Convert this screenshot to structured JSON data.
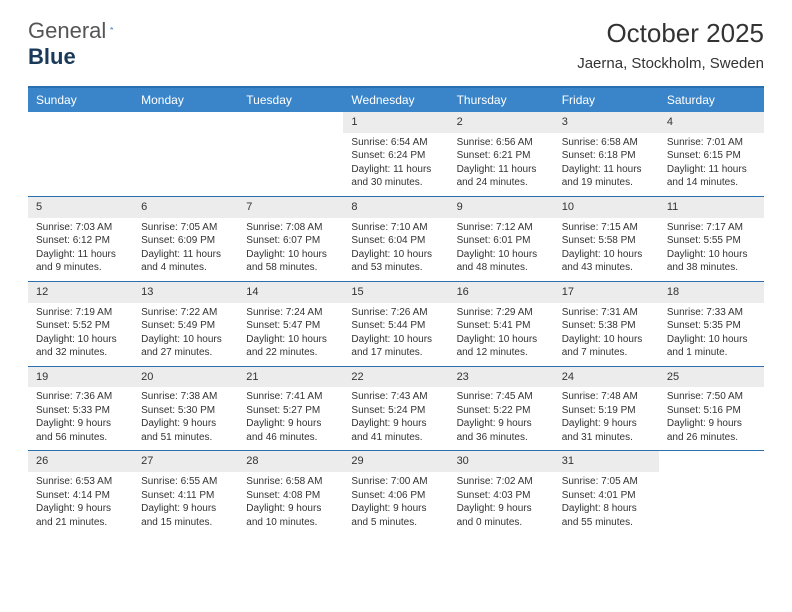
{
  "brand": {
    "word1": "General",
    "word2": "Blue",
    "icon_color": "#2a6fb0"
  },
  "header": {
    "month_title": "October 2025",
    "location": "Jaerna, Stockholm, Sweden"
  },
  "colors": {
    "header_bar": "#3a85c9",
    "rule": "#2a6fb0",
    "daynum_bg": "#ececec",
    "text": "#333333",
    "logo_gray": "#555555",
    "logo_dark": "#1a3a5a"
  },
  "columns": [
    "Sunday",
    "Monday",
    "Tuesday",
    "Wednesday",
    "Thursday",
    "Friday",
    "Saturday"
  ],
  "weeks": [
    [
      {
        "n": "",
        "sr": "",
        "ss": "",
        "dl": ""
      },
      {
        "n": "",
        "sr": "",
        "ss": "",
        "dl": ""
      },
      {
        "n": "",
        "sr": "",
        "ss": "",
        "dl": ""
      },
      {
        "n": "1",
        "sr": "Sunrise: 6:54 AM",
        "ss": "Sunset: 6:24 PM",
        "dl": "Daylight: 11 hours and 30 minutes."
      },
      {
        "n": "2",
        "sr": "Sunrise: 6:56 AM",
        "ss": "Sunset: 6:21 PM",
        "dl": "Daylight: 11 hours and 24 minutes."
      },
      {
        "n": "3",
        "sr": "Sunrise: 6:58 AM",
        "ss": "Sunset: 6:18 PM",
        "dl": "Daylight: 11 hours and 19 minutes."
      },
      {
        "n": "4",
        "sr": "Sunrise: 7:01 AM",
        "ss": "Sunset: 6:15 PM",
        "dl": "Daylight: 11 hours and 14 minutes."
      }
    ],
    [
      {
        "n": "5",
        "sr": "Sunrise: 7:03 AM",
        "ss": "Sunset: 6:12 PM",
        "dl": "Daylight: 11 hours and 9 minutes."
      },
      {
        "n": "6",
        "sr": "Sunrise: 7:05 AM",
        "ss": "Sunset: 6:09 PM",
        "dl": "Daylight: 11 hours and 4 minutes."
      },
      {
        "n": "7",
        "sr": "Sunrise: 7:08 AM",
        "ss": "Sunset: 6:07 PM",
        "dl": "Daylight: 10 hours and 58 minutes."
      },
      {
        "n": "8",
        "sr": "Sunrise: 7:10 AM",
        "ss": "Sunset: 6:04 PM",
        "dl": "Daylight: 10 hours and 53 minutes."
      },
      {
        "n": "9",
        "sr": "Sunrise: 7:12 AM",
        "ss": "Sunset: 6:01 PM",
        "dl": "Daylight: 10 hours and 48 minutes."
      },
      {
        "n": "10",
        "sr": "Sunrise: 7:15 AM",
        "ss": "Sunset: 5:58 PM",
        "dl": "Daylight: 10 hours and 43 minutes."
      },
      {
        "n": "11",
        "sr": "Sunrise: 7:17 AM",
        "ss": "Sunset: 5:55 PM",
        "dl": "Daylight: 10 hours and 38 minutes."
      }
    ],
    [
      {
        "n": "12",
        "sr": "Sunrise: 7:19 AM",
        "ss": "Sunset: 5:52 PM",
        "dl": "Daylight: 10 hours and 32 minutes."
      },
      {
        "n": "13",
        "sr": "Sunrise: 7:22 AM",
        "ss": "Sunset: 5:49 PM",
        "dl": "Daylight: 10 hours and 27 minutes."
      },
      {
        "n": "14",
        "sr": "Sunrise: 7:24 AM",
        "ss": "Sunset: 5:47 PM",
        "dl": "Daylight: 10 hours and 22 minutes."
      },
      {
        "n": "15",
        "sr": "Sunrise: 7:26 AM",
        "ss": "Sunset: 5:44 PM",
        "dl": "Daylight: 10 hours and 17 minutes."
      },
      {
        "n": "16",
        "sr": "Sunrise: 7:29 AM",
        "ss": "Sunset: 5:41 PM",
        "dl": "Daylight: 10 hours and 12 minutes."
      },
      {
        "n": "17",
        "sr": "Sunrise: 7:31 AM",
        "ss": "Sunset: 5:38 PM",
        "dl": "Daylight: 10 hours and 7 minutes."
      },
      {
        "n": "18",
        "sr": "Sunrise: 7:33 AM",
        "ss": "Sunset: 5:35 PM",
        "dl": "Daylight: 10 hours and 1 minute."
      }
    ],
    [
      {
        "n": "19",
        "sr": "Sunrise: 7:36 AM",
        "ss": "Sunset: 5:33 PM",
        "dl": "Daylight: 9 hours and 56 minutes."
      },
      {
        "n": "20",
        "sr": "Sunrise: 7:38 AM",
        "ss": "Sunset: 5:30 PM",
        "dl": "Daylight: 9 hours and 51 minutes."
      },
      {
        "n": "21",
        "sr": "Sunrise: 7:41 AM",
        "ss": "Sunset: 5:27 PM",
        "dl": "Daylight: 9 hours and 46 minutes."
      },
      {
        "n": "22",
        "sr": "Sunrise: 7:43 AM",
        "ss": "Sunset: 5:24 PM",
        "dl": "Daylight: 9 hours and 41 minutes."
      },
      {
        "n": "23",
        "sr": "Sunrise: 7:45 AM",
        "ss": "Sunset: 5:22 PM",
        "dl": "Daylight: 9 hours and 36 minutes."
      },
      {
        "n": "24",
        "sr": "Sunrise: 7:48 AM",
        "ss": "Sunset: 5:19 PM",
        "dl": "Daylight: 9 hours and 31 minutes."
      },
      {
        "n": "25",
        "sr": "Sunrise: 7:50 AM",
        "ss": "Sunset: 5:16 PM",
        "dl": "Daylight: 9 hours and 26 minutes."
      }
    ],
    [
      {
        "n": "26",
        "sr": "Sunrise: 6:53 AM",
        "ss": "Sunset: 4:14 PM",
        "dl": "Daylight: 9 hours and 21 minutes."
      },
      {
        "n": "27",
        "sr": "Sunrise: 6:55 AM",
        "ss": "Sunset: 4:11 PM",
        "dl": "Daylight: 9 hours and 15 minutes."
      },
      {
        "n": "28",
        "sr": "Sunrise: 6:58 AM",
        "ss": "Sunset: 4:08 PM",
        "dl": "Daylight: 9 hours and 10 minutes."
      },
      {
        "n": "29",
        "sr": "Sunrise: 7:00 AM",
        "ss": "Sunset: 4:06 PM",
        "dl": "Daylight: 9 hours and 5 minutes."
      },
      {
        "n": "30",
        "sr": "Sunrise: 7:02 AM",
        "ss": "Sunset: 4:03 PM",
        "dl": "Daylight: 9 hours and 0 minutes."
      },
      {
        "n": "31",
        "sr": "Sunrise: 7:05 AM",
        "ss": "Sunset: 4:01 PM",
        "dl": "Daylight: 8 hours and 55 minutes."
      },
      {
        "n": "",
        "sr": "",
        "ss": "",
        "dl": ""
      }
    ]
  ]
}
